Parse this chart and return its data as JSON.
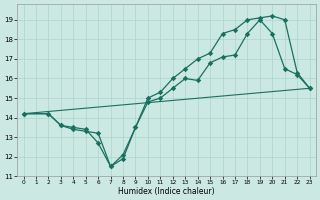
{
  "xlabel": "Humidex (Indice chaleur)",
  "bg_color": "#cce8e2",
  "grid_color": "#aad4cc",
  "line_color": "#1a7060",
  "xlim_min": -0.5,
  "xlim_max": 23.5,
  "ylim_min": 11,
  "ylim_max": 19.8,
  "xticks": [
    0,
    1,
    2,
    3,
    4,
    5,
    6,
    7,
    8,
    9,
    10,
    11,
    12,
    13,
    14,
    15,
    16,
    17,
    18,
    19,
    20,
    21,
    22,
    23
  ],
  "yticks": [
    11,
    12,
    13,
    14,
    15,
    16,
    17,
    18,
    19
  ],
  "line1_x": [
    0,
    2,
    3,
    4,
    5,
    6,
    7,
    8,
    9,
    10,
    11,
    12,
    13,
    14,
    15,
    16,
    17,
    18,
    19,
    20,
    21,
    22,
    23
  ],
  "line1_y": [
    14.2,
    14.2,
    13.6,
    13.5,
    13.4,
    12.7,
    11.5,
    12.1,
    13.5,
    15.0,
    15.3,
    16.0,
    16.5,
    17.0,
    17.3,
    18.3,
    18.5,
    19.0,
    19.1,
    19.2,
    19.0,
    16.3,
    15.5
  ],
  "line2_x": [
    0,
    2,
    3,
    4,
    5,
    6,
    7,
    8,
    9,
    10,
    11,
    12,
    13,
    14,
    15,
    16,
    17,
    18,
    19,
    20,
    21,
    22,
    23
  ],
  "line2_y": [
    14.2,
    14.2,
    13.6,
    13.4,
    13.3,
    13.2,
    11.5,
    11.9,
    13.5,
    14.8,
    15.0,
    15.5,
    16.0,
    15.9,
    16.8,
    17.1,
    17.2,
    18.3,
    19.0,
    18.3,
    16.5,
    16.2,
    15.5
  ],
  "line3_x": [
    0,
    23
  ],
  "line3_y": [
    14.2,
    15.5
  ]
}
